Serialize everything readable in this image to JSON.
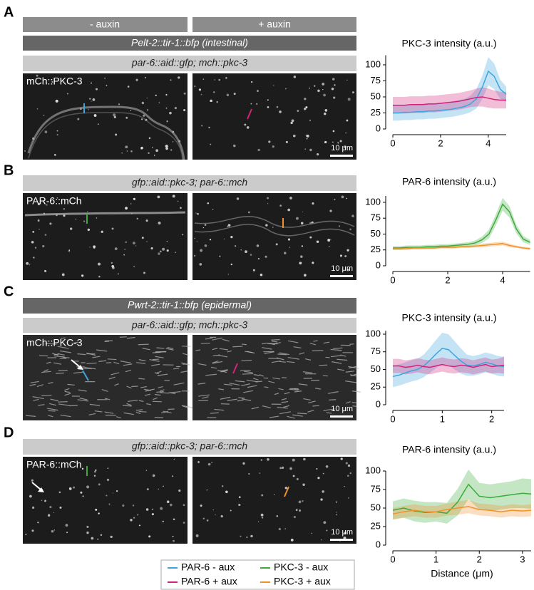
{
  "conditions": [
    "- auxin",
    "+ auxin"
  ],
  "panels": [
    {
      "letter": "A",
      "driver": "Pelt-2::tir-1::bfp (intestinal)",
      "strain": "par-6::aid::gfp; mch::pkc-3",
      "image_label": "mCh::PKC-3",
      "scale_bar": "10 μm"
    },
    {
      "letter": "B",
      "strain": "gfp::aid::pkc-3; par-6::mch",
      "image_label": "PAR-6::mCh",
      "scale_bar": "10 μm"
    },
    {
      "letter": "C",
      "driver": "Pwrt-2::tir-1::bfp (epidermal)",
      "strain": "par-6::aid::gfp; mch::pkc-3",
      "image_label": "mCh::PKC-3",
      "scale_bar": "10 μm"
    },
    {
      "letter": "D",
      "strain": "gfp::aid::pkc-3; par-6::mch",
      "image_label": "PAR-6::mCh",
      "scale_bar": "10 μm"
    }
  ],
  "chart_data": [
    {
      "type": "line",
      "title": "PKC-3 intensity (a.u.)",
      "x": [
        0,
        0.25,
        0.5,
        0.75,
        1,
        1.25,
        1.5,
        1.75,
        2,
        2.25,
        2.5,
        2.75,
        3,
        3.25,
        3.5,
        3.75,
        4,
        4.25,
        4.5,
        4.75
      ],
      "xlim": [
        0,
        4.75
      ],
      "xticks": [
        0,
        2,
        4
      ],
      "ylim": [
        0,
        115
      ],
      "yticks": [
        0,
        25,
        50,
        75,
        100
      ],
      "series": [
        {
          "name": "PAR-6 - aux",
          "color": "#3aa6dd",
          "values": [
            25,
            25,
            26,
            26,
            27,
            27,
            28,
            28,
            29,
            30,
            31,
            33,
            35,
            39,
            47,
            65,
            90,
            82,
            62,
            54
          ],
          "error": [
            12,
            12,
            12,
            12,
            12,
            12,
            12,
            12,
            12,
            12,
            12,
            12,
            12,
            13,
            15,
            18,
            22,
            20,
            15,
            12
          ]
        },
        {
          "name": "PAR-6 + aux",
          "color": "#d4237a",
          "values": [
            37,
            37,
            37,
            38,
            38,
            38,
            39,
            39,
            40,
            41,
            42,
            43,
            45,
            47,
            49,
            50,
            48,
            46,
            45,
            45
          ],
          "error": [
            13,
            13,
            13,
            13,
            13,
            13,
            13,
            13,
            13,
            13,
            13,
            13,
            13,
            13,
            14,
            15,
            15,
            14,
            13,
            13
          ]
        }
      ]
    },
    {
      "type": "line",
      "title": "PAR-6 intensity (a.u.)",
      "x": [
        0,
        0.25,
        0.5,
        0.75,
        1,
        1.25,
        1.5,
        1.75,
        2,
        2.25,
        2.5,
        2.75,
        3,
        3.25,
        3.5,
        3.75,
        4,
        4.25,
        4.5,
        4.75,
        5
      ],
      "xlim": [
        0,
        5
      ],
      "xticks": [
        0,
        2,
        4
      ],
      "ylim": [
        0,
        110
      ],
      "yticks": [
        0,
        25,
        50,
        75,
        100
      ],
      "series": [
        {
          "name": "PKC-3 - aux",
          "color": "#3bab3b",
          "values": [
            28,
            28,
            29,
            29,
            29,
            30,
            30,
            31,
            31,
            32,
            33,
            34,
            36,
            41,
            50,
            72,
            97,
            85,
            58,
            42,
            37
          ],
          "error": [
            3,
            3,
            3,
            3,
            3,
            3,
            3,
            3,
            3,
            3,
            3,
            3,
            4,
            5,
            7,
            9,
            10,
            9,
            7,
            5,
            4
          ]
        },
        {
          "name": "PKC-3 + aux",
          "color": "#f0922b",
          "values": [
            27,
            27,
            27,
            28,
            28,
            28,
            28,
            29,
            29,
            29,
            30,
            30,
            31,
            32,
            33,
            34,
            35,
            32,
            30,
            28,
            27
          ],
          "error": [
            2,
            2,
            2,
            2,
            2,
            2,
            2,
            2,
            2,
            2,
            2,
            2,
            2,
            3,
            3,
            3,
            3,
            3,
            2,
            2,
            2
          ]
        }
      ]
    },
    {
      "type": "line",
      "title": "PKC-3 intensity (a.u.)",
      "x": [
        0,
        0.125,
        0.25,
        0.375,
        0.5,
        0.625,
        0.75,
        0.875,
        1,
        1.125,
        1.25,
        1.375,
        1.5,
        1.625,
        1.75,
        1.875,
        2,
        2.125,
        2.25
      ],
      "xlim": [
        0,
        2.25
      ],
      "xticks": [
        0,
        1,
        2
      ],
      "ylim": [
        0,
        105
      ],
      "yticks": [
        0,
        25,
        50,
        75,
        100
      ],
      "series": [
        {
          "name": "PAR-6 - aux",
          "color": "#3aa6dd",
          "values": [
            40,
            42,
            45,
            48,
            50,
            55,
            63,
            72,
            80,
            78,
            70,
            62,
            56,
            55,
            57,
            60,
            58,
            55,
            54
          ],
          "error": [
            15,
            15,
            15,
            15,
            15,
            16,
            18,
            20,
            22,
            22,
            20,
            18,
            15,
            14,
            14,
            14,
            14,
            14,
            14
          ]
        },
        {
          "name": "PAR-6 + aux",
          "color": "#d4237a",
          "values": [
            55,
            55,
            53,
            54,
            56,
            54,
            53,
            55,
            57,
            55,
            54,
            56,
            55,
            53,
            55,
            57,
            54,
            55,
            56
          ],
          "error": [
            10,
            10,
            10,
            10,
            10,
            10,
            10,
            10,
            10,
            10,
            10,
            10,
            10,
            10,
            10,
            10,
            10,
            10,
            12
          ]
        }
      ]
    },
    {
      "type": "line",
      "title": "PAR-6 intensity (a.u.)",
      "x_label": "Distance (μm)",
      "x": [
        0,
        0.25,
        0.5,
        0.75,
        1,
        1.25,
        1.5,
        1.75,
        2,
        2.25,
        2.5,
        2.75,
        3,
        3.2
      ],
      "xlim": [
        0,
        3.2
      ],
      "xticks": [
        0,
        1,
        2,
        3
      ],
      "ylim": [
        0,
        100
      ],
      "yticks": [
        0,
        25,
        50,
        75,
        100
      ],
      "series": [
        {
          "name": "PKC-3 - aux",
          "color": "#3bab3b",
          "values": [
            47,
            50,
            46,
            44,
            45,
            43,
            58,
            82,
            66,
            64,
            66,
            68,
            70,
            69
          ],
          "error": [
            12,
            13,
            14,
            14,
            13,
            14,
            18,
            20,
            18,
            18,
            18,
            18,
            20,
            20
          ]
        },
        {
          "name": "PKC-3 + aux",
          "color": "#f0922b",
          "values": [
            42,
            45,
            47,
            45,
            45,
            48,
            50,
            52,
            48,
            47,
            45,
            47,
            46,
            47
          ],
          "error": [
            8,
            8,
            8,
            8,
            8,
            8,
            9,
            9,
            8,
            8,
            8,
            8,
            8,
            8
          ]
        }
      ]
    }
  ]
}
